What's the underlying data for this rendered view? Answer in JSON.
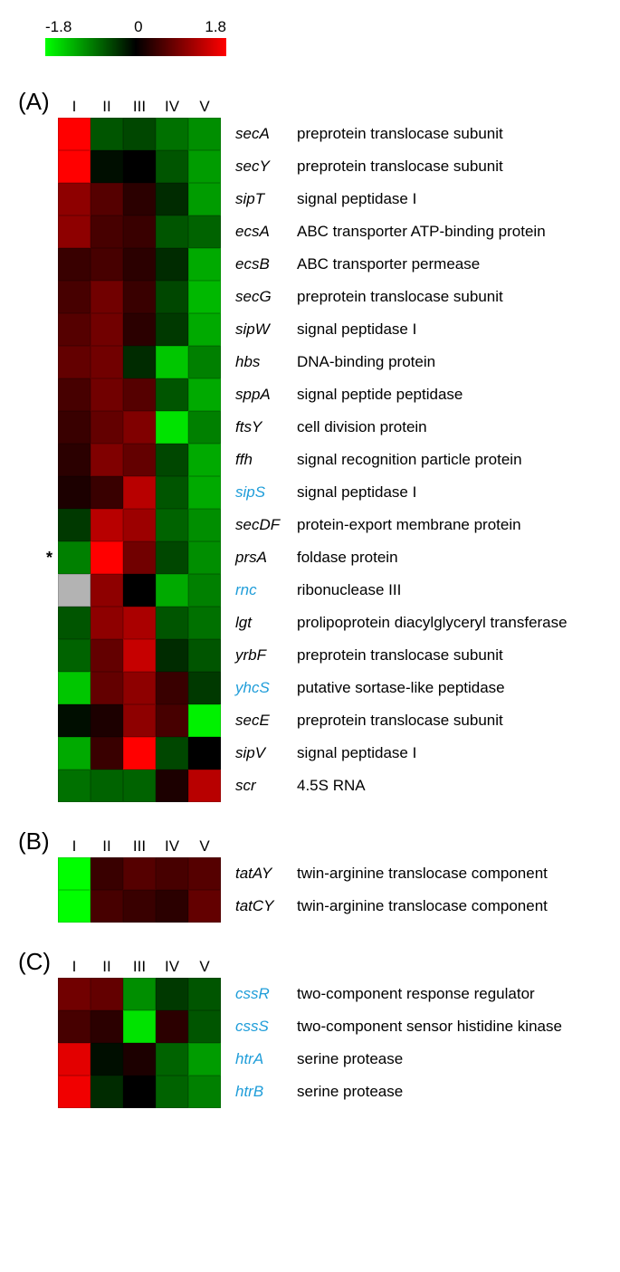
{
  "colorbar": {
    "min_label": "-1.8",
    "mid_label": "0",
    "max_label": "1.8",
    "min_value": -1.8,
    "max_value": 1.8
  },
  "columns": [
    "I",
    "II",
    "III",
    "IV",
    "V"
  ],
  "cell_size": 36,
  "missing_color": "#b3b3b3",
  "panels": [
    {
      "letter": "(A)",
      "rows": [
        {
          "gene": "secA",
          "desc": "preprotein translocase subunit",
          "blue": false,
          "marker": "",
          "values": [
            1.8,
            -0.6,
            -0.5,
            -0.8,
            -1.0
          ]
        },
        {
          "gene": "secY",
          "desc": "preprotein translocase subunit",
          "blue": false,
          "marker": "",
          "values": [
            1.8,
            -0.1,
            0.0,
            -0.6,
            -1.1
          ]
        },
        {
          "gene": "sipT",
          "desc": "signal peptidase I",
          "blue": false,
          "marker": "",
          "values": [
            1.0,
            0.6,
            0.3,
            -0.3,
            -1.1
          ]
        },
        {
          "gene": "ecsA",
          "desc": "ABC transporter ATP-binding protein",
          "blue": false,
          "marker": "",
          "values": [
            1.0,
            0.5,
            0.4,
            -0.6,
            -0.7
          ]
        },
        {
          "gene": "ecsB",
          "desc": "ABC transporter permease",
          "blue": false,
          "marker": "",
          "values": [
            0.4,
            0.5,
            0.3,
            -0.3,
            -1.2
          ]
        },
        {
          "gene": "secG",
          "desc": "preprotein translocase subunit",
          "blue": false,
          "marker": "",
          "values": [
            0.5,
            0.8,
            0.4,
            -0.5,
            -1.3
          ]
        },
        {
          "gene": "sipW",
          "desc": "signal peptidase I",
          "blue": false,
          "marker": "",
          "values": [
            0.6,
            0.8,
            0.3,
            -0.4,
            -1.2
          ]
        },
        {
          "gene": "hbs",
          "desc": "DNA-binding protein",
          "blue": false,
          "marker": "",
          "values": [
            0.7,
            0.8,
            -0.3,
            -1.4,
            -0.9
          ]
        },
        {
          "gene": "sppA",
          "desc": "signal peptide peptidase",
          "blue": false,
          "marker": "",
          "values": [
            0.5,
            0.8,
            0.6,
            -0.6,
            -1.2
          ]
        },
        {
          "gene": "ftsY",
          "desc": "cell division protein",
          "blue": false,
          "marker": "",
          "values": [
            0.4,
            0.7,
            0.9,
            -1.6,
            -0.9
          ]
        },
        {
          "gene": "ffh",
          "desc": "signal recognition particle protein",
          "blue": false,
          "marker": "",
          "values": [
            0.3,
            0.9,
            0.7,
            -0.5,
            -1.2
          ]
        },
        {
          "gene": "sipS",
          "desc": "signal peptidase I",
          "blue": true,
          "marker": "",
          "values": [
            0.2,
            0.4,
            1.3,
            -0.6,
            -1.2
          ]
        },
        {
          "gene": "secDF",
          "desc": "protein-export membrane protein",
          "blue": false,
          "marker": "",
          "values": [
            -0.4,
            1.3,
            1.1,
            -0.7,
            -1.0
          ]
        },
        {
          "gene": "prsA",
          "desc": "foldase protein",
          "blue": false,
          "marker": "*",
          "values": [
            -0.9,
            1.8,
            0.8,
            -0.5,
            -1.0
          ]
        },
        {
          "gene": "rnc",
          "desc": "ribonuclease III",
          "blue": true,
          "marker": "",
          "values": [
            null,
            1.0,
            0.0,
            -1.2,
            -0.9
          ]
        },
        {
          "gene": "lgt",
          "desc": "prolipoprotein diacylglyceryl transferase",
          "blue": false,
          "marker": "",
          "values": [
            -0.6,
            1.0,
            1.2,
            -0.6,
            -0.8
          ]
        },
        {
          "gene": "yrbF",
          "desc": "preprotein translocase subunit",
          "blue": false,
          "marker": "",
          "values": [
            -0.7,
            0.7,
            1.4,
            -0.3,
            -0.6
          ]
        },
        {
          "gene": "yhcS",
          "desc": "putative sortase-like peptidase",
          "blue": true,
          "marker": "",
          "values": [
            -1.4,
            0.7,
            1.0,
            0.4,
            -0.4
          ]
        },
        {
          "gene": "secE",
          "desc": "preprotein translocase subunit",
          "blue": false,
          "marker": "",
          "values": [
            -0.1,
            0.2,
            1.0,
            0.5,
            -1.7
          ]
        },
        {
          "gene": "sipV",
          "desc": "signal peptidase I",
          "blue": false,
          "marker": "",
          "values": [
            -1.2,
            0.4,
            1.8,
            -0.5,
            0.0
          ]
        },
        {
          "gene": "scr",
          "desc": "4.5S RNA",
          "blue": false,
          "marker": "",
          "values": [
            -0.8,
            -0.7,
            -0.7,
            0.2,
            1.3
          ]
        }
      ]
    },
    {
      "letter": "(B)",
      "rows": [
        {
          "gene": "tatAY",
          "desc": "twin-arginine translocase component",
          "blue": false,
          "marker": "",
          "values": [
            -1.8,
            0.4,
            0.6,
            0.5,
            0.6
          ]
        },
        {
          "gene": "tatCY",
          "desc": "twin-arginine translocase component",
          "blue": false,
          "marker": "",
          "values": [
            -1.8,
            0.5,
            0.4,
            0.3,
            0.7
          ]
        }
      ]
    },
    {
      "letter": "(C)",
      "rows": [
        {
          "gene": "cssR",
          "desc": "two-component response regulator",
          "blue": true,
          "marker": "",
          "values": [
            0.8,
            0.7,
            -1.0,
            -0.4,
            -0.6
          ]
        },
        {
          "gene": "cssS",
          "desc": "two-component sensor histidine kinase",
          "blue": true,
          "marker": "",
          "values": [
            0.5,
            0.3,
            -1.6,
            0.3,
            -0.6
          ]
        },
        {
          "gene": "htrA",
          "desc": "serine protease",
          "blue": true,
          "marker": "",
          "values": [
            1.6,
            -0.1,
            0.2,
            -0.7,
            -1.1
          ]
        },
        {
          "gene": "htrB",
          "desc": "serine protease",
          "blue": true,
          "marker": "",
          "values": [
            1.7,
            -0.3,
            0.0,
            -0.7,
            -0.9
          ]
        }
      ]
    }
  ]
}
